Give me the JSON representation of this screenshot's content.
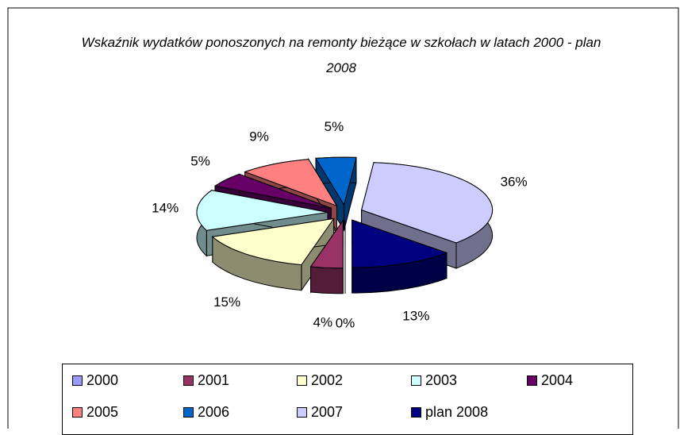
{
  "chart_data": {
    "type": "pie",
    "title": "Wskaźnik wydatków ponoszonych na remonty bieżące w szkołach w latach 2000 - plan 2008",
    "categories": [
      "2000",
      "2001",
      "2002",
      "2003",
      "2004",
      "2005",
      "2006",
      "2007",
      "plan 2008"
    ],
    "values": [
      0,
      4,
      15,
      14,
      5,
      9,
      5,
      36,
      13
    ],
    "value_labels": [
      "0%",
      "4%",
      "15%",
      "14%",
      "5%",
      "9%",
      "5%",
      "36%",
      "13%"
    ],
    "colors": [
      "#9999FF",
      "#993366",
      "#FFFFCC",
      "#CCFFFF",
      "#660066",
      "#FF8080",
      "#0066CC",
      "#CCCCFF",
      "#000080"
    ],
    "legend": "bottom"
  }
}
